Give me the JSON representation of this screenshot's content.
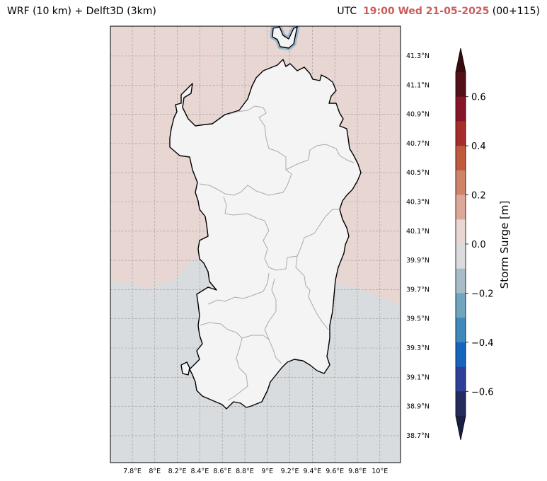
{
  "header": {
    "model_title": "WRF (10 km) + Delft3D (3km)",
    "utc_label": "UTC",
    "datetime": "19:00 Wed 21-05-2025",
    "lead": "(00+115)"
  },
  "map": {
    "lon_labels": [
      "7.8°E",
      "8°E",
      "8.2°E",
      "8.4°E",
      "8.6°E",
      "8.8°E",
      "9°E",
      "9.2°E",
      "9.4°E",
      "9.6°E",
      "9.8°E",
      "10°E"
    ],
    "lat_labels": [
      "41.3°N",
      "41.1°N",
      "40.9°N",
      "40.7°N",
      "40.5°N",
      "40.3°N",
      "40.1°N",
      "39.9°N",
      "39.7°N",
      "39.5°N",
      "39.3°N",
      "39.1°N",
      "38.9°N",
      "38.7°N"
    ],
    "colors": {
      "land": "#f4f4f4",
      "sea_positive": "#e8d6d3",
      "sea_negative": "#d8dcdf",
      "coast_negative": "#8fb4cc",
      "regions": "#aaaaaa",
      "grid": "#999999"
    }
  },
  "colorbar": {
    "label": "Storm Surge [m]",
    "ticks": [
      "0.6",
      "0.4",
      "0.2",
      "0.0",
      "−0.2",
      "−0.4",
      "−0.6"
    ],
    "levels": [
      "#531017",
      "#86152a",
      "#a62e2a",
      "#bf5a3c",
      "#cf8468",
      "#dca899",
      "#e8d6d3",
      "#d9dbdd",
      "#a8bcc8",
      "#6fa5bd",
      "#3f88bc",
      "#1565bd",
      "#2e3f9a",
      "#262b5e"
    ],
    "extend_max": "#3b0a10",
    "extend_min": "#1b1f45"
  }
}
